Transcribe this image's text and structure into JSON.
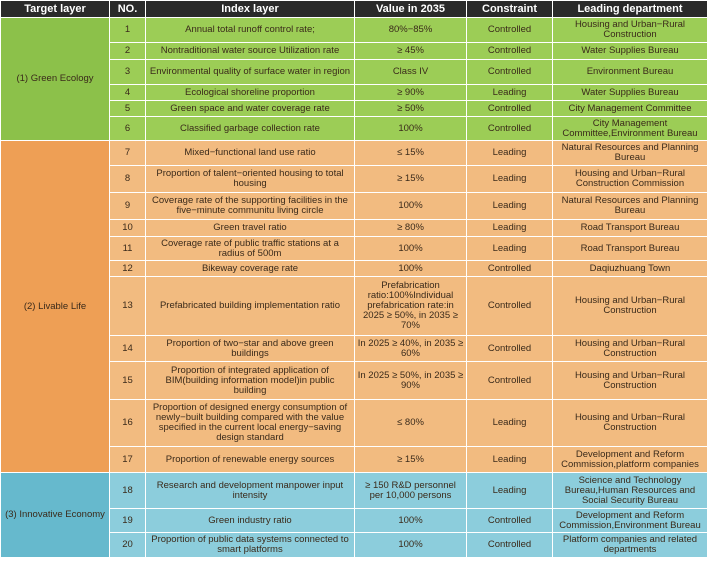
{
  "headers": [
    "Target layer",
    "NO.",
    "Index layer",
    "Value in 2035",
    "Constraint",
    "Leading department"
  ],
  "groups": [
    {
      "target": "(1) Green Ecology",
      "color": "#9ccd56",
      "rows": [
        {
          "no": "1",
          "index": "Annual total runoff control rate;",
          "value": "80%−85%",
          "constraint": "Controlled",
          "dept": "Housing and Urban−Rural Construction"
        },
        {
          "no": "2",
          "index": "Nontraditional water source Utilization rate",
          "value": "≥ 45%",
          "constraint": "Controlled",
          "dept": "Water Supplies Bureau"
        },
        {
          "no": "3",
          "index": "Environmental quality of surface water in region",
          "value": "Class IV",
          "constraint": "Controlled",
          "dept": "Environment Bureau"
        },
        {
          "no": "4",
          "index": "Ecological shoreline proportion",
          "value": "≥ 90%",
          "constraint": "Leading",
          "dept": "Water Supplies Bureau"
        },
        {
          "no": "5",
          "index": "Green space and water coverage rate",
          "value": "≥ 50%",
          "constraint": "Controlled",
          "dept": "City Management Committee"
        },
        {
          "no": "6",
          "index": "Classified garbage collection rate",
          "value": "100%",
          "constraint": "Controlled",
          "dept": "City Management Committee,Environment Bureau"
        }
      ]
    },
    {
      "target": "(2) Livable Life",
      "color": "#f2bb80",
      "rows": [
        {
          "no": "7",
          "index": "Mixed−functional land use ratio",
          "value": "≤ 15%",
          "constraint": "Leading",
          "dept": "Natural Resources and Planning Bureau"
        },
        {
          "no": "8",
          "index": "Proportion of talent−oriented housing to total housing",
          "value": "≥ 15%",
          "constraint": "Leading",
          "dept": "Housing and Urban−Rural Construction Commission"
        },
        {
          "no": "9",
          "index": "Coverage rate of the supporting facilities in the five−minute communitu living circle",
          "value": "100%",
          "constraint": "Leading",
          "dept": "Natural Resources and Planning Bureau"
        },
        {
          "no": "10",
          "index": "Green travel ratio",
          "value": "≥ 80%",
          "constraint": "Leading",
          "dept": "Road Transport Bureau"
        },
        {
          "no": "11",
          "index": "Coverage rate of public traffic stations at a radius of 500m",
          "value": "100%",
          "constraint": "Leading",
          "dept": "Road Transport Bureau"
        },
        {
          "no": "12",
          "index": "Bikeway coverage rate",
          "value": "100%",
          "constraint": "Controlled",
          "dept": "Daqiuzhuang Town"
        },
        {
          "no": "13",
          "index": "Prefabricated building implementation ratio",
          "value": "Prefabrication ratio:100%Individual prefabrication rate:in 2025 ≥ 50%, in 2035 ≥ 70%",
          "constraint": "Controlled",
          "dept": "Housing and Urban−Rural Construction"
        },
        {
          "no": "14",
          "index": "Proportion of two−star and above green buildings",
          "value": "In 2025 ≥ 40%, in 2035 ≥ 60%",
          "constraint": "Controlled",
          "dept": "Housing and Urban−Rural Construction"
        },
        {
          "no": "15",
          "index": "Proportion of integrated application of BIM(building information model)in public building",
          "value": "In 2025 ≥ 50%, in 2035 ≥ 90%",
          "constraint": "Controlled",
          "dept": "Housing and Urban−Rural Construction"
        },
        {
          "no": "16",
          "index": "Proportion of designed energy consumption of newly−built building compared with the value specified in the current local energy−saving design standard",
          "value": "≤ 80%",
          "constraint": "Leading",
          "dept": "Housing and Urban−Rural Construction"
        },
        {
          "no": "17",
          "index": "Proportion of renewable energy sources",
          "value": "≥ 15%",
          "constraint": "Leading",
          "dept": "Development and Reform Commission,platform companies"
        }
      ]
    },
    {
      "target": "(3) Innovative Economy",
      "color": "#8ccddc",
      "rows": [
        {
          "no": "18",
          "index": "Research and development manpower input intensity",
          "value": "≥ 150 R&D personnel per 10,000 persons",
          "constraint": "Leading",
          "dept": "Science and Technology Bureau,Human Resources and Social Security Bureau"
        },
        {
          "no": "19",
          "index": "Green industry ratio",
          "value": "100%",
          "constraint": "Controlled",
          "dept": "Development and Reform Commission,Environment Bureau"
        },
        {
          "no": "20",
          "index": "Proportion of public data systems connected to smart platforms",
          "value": "100%",
          "constraint": "Controlled",
          "dept": "Platform companies and related departments"
        }
      ]
    }
  ]
}
